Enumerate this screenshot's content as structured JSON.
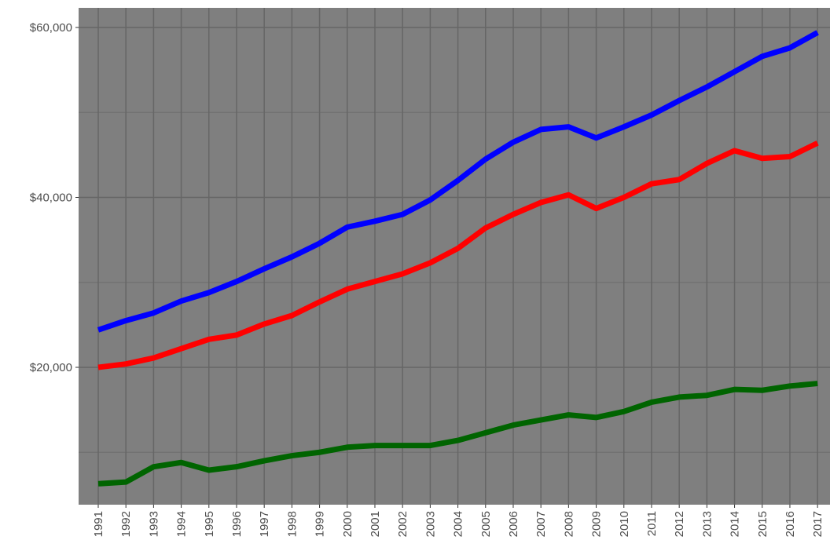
{
  "chart_data": {
    "type": "line",
    "x": [
      1991,
      1992,
      1993,
      1994,
      1995,
      1996,
      1997,
      1998,
      1999,
      2000,
      2001,
      2002,
      2003,
      2004,
      2005,
      2006,
      2007,
      2008,
      2009,
      2010,
      2011,
      2012,
      2013,
      2014,
      2015,
      2016,
      2017
    ],
    "series": [
      {
        "color": "#0000ff",
        "values": [
          24400,
          25500,
          26400,
          27800,
          28800,
          30100,
          31600,
          33000,
          34600,
          36500,
          37200,
          38000,
          39700,
          42000,
          44500,
          46500,
          48000,
          48300,
          47000,
          48300,
          49700,
          51400,
          53000,
          54800,
          56600,
          57600,
          59400
        ]
      },
      {
        "color": "#ff0000",
        "values": [
          20000,
          20400,
          21100,
          22200,
          23300,
          23800,
          25100,
          26100,
          27700,
          29200,
          30100,
          31000,
          32300,
          34000,
          36400,
          38000,
          39400,
          40300,
          38700,
          40000,
          41600,
          42100,
          44000,
          45500,
          44600,
          44800,
          46400
        ]
      },
      {
        "color": "#006400",
        "values": [
          6300,
          6500,
          8300,
          8800,
          7900,
          8300,
          9000,
          9600,
          10000,
          10600,
          10800,
          10800,
          10800,
          11400,
          12300,
          13200,
          13800,
          14400,
          14100,
          14800,
          15900,
          16500,
          16700,
          17400,
          17300,
          17800,
          18100
        ]
      }
    ],
    "xlim": [
      1990.29,
      2017.45
    ],
    "xticks": [
      1991,
      1992,
      1993,
      1994,
      1995,
      1996,
      1997,
      1998,
      1999,
      2000,
      2001,
      2002,
      2003,
      2004,
      2005,
      2006,
      2007,
      2008,
      2009,
      2010,
      2011,
      2012,
      2013,
      2014,
      2015,
      2016,
      2017
    ],
    "ylim": [
      3834,
      62309
    ],
    "yticks": [
      {
        "value": 20000,
        "label": "$20,000"
      },
      {
        "value": 40000,
        "label": "$40,000"
      },
      {
        "value": 60000,
        "label": "$60,000"
      }
    ],
    "yminor": [
      10000,
      30000,
      50000
    ],
    "grid": true
  }
}
